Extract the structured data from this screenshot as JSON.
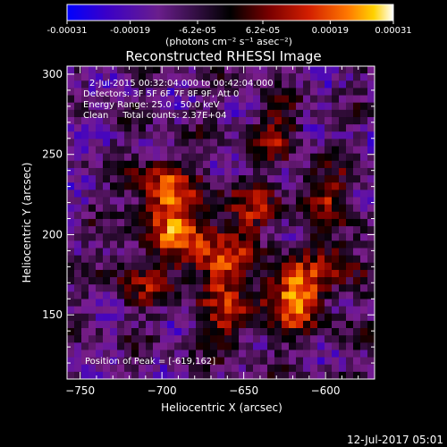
{
  "colorbar": {
    "tick_labels": [
      "-0.00031",
      "-0.00019",
      "-6.2e-05",
      "6.2e-05",
      "0.00019",
      "0.00031"
    ],
    "tick_values": [
      -0.00031,
      -0.00019,
      -6.2e-05,
      6.2e-05,
      0.00019,
      0.00031
    ],
    "range": [
      -0.00031,
      0.00031
    ],
    "unit_label": "(photons cm⁻² s⁻¹ asec⁻²)",
    "colors": [
      "#0000ff",
      "#3a00c8",
      "#7a1e8c",
      "#000000",
      "#7a0000",
      "#d21e00",
      "#ff7800",
      "#ffd200",
      "#ffffff"
    ]
  },
  "chart_data": {
    "type": "heatmap",
    "title": "Reconstructed RHESSI Image",
    "xlabel": "Heliocentric X (arcsec)",
    "ylabel": "Heliocentric Y (arcsec)",
    "xlim": [
      -758,
      -570
    ],
    "ylim": [
      110,
      305
    ],
    "x_ticks": [
      -750,
      -700,
      -650,
      -600
    ],
    "y_ticks": [
      150,
      200,
      250,
      300
    ],
    "x_tick_labels": [
      "−750",
      "−700",
      "−650",
      "−600"
    ],
    "y_tick_labels": [
      "150",
      "200",
      "250",
      "300"
    ],
    "annotations": [
      "2-Jul-2015 00:32:04.000 to 00:42:04.000",
      "Detectors: 3F 5F 6F 7F 8F 9F, Att 0",
      "Energy Range: 25.0 - 50.0 keV",
      "Clean     Total counts: 2.37E+04"
    ],
    "peak_label": "Position of Peak = [-619,162]",
    "peak_position": [
      -619,
      162
    ]
  },
  "footer": {
    "timestamp": "12-Jul-2017 05:01"
  }
}
